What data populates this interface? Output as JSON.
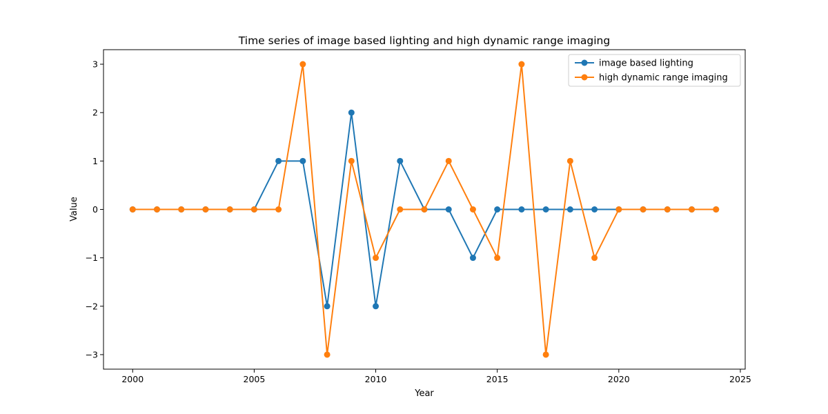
{
  "chart_data": {
    "type": "line",
    "title": "Time series of image based lighting and high dynamic range imaging",
    "xlabel": "Year",
    "ylabel": "Value",
    "x": [
      2000,
      2001,
      2002,
      2003,
      2004,
      2005,
      2006,
      2007,
      2008,
      2009,
      2010,
      2011,
      2012,
      2013,
      2014,
      2015,
      2016,
      2017,
      2018,
      2019,
      2020,
      2021,
      2022,
      2023,
      2024
    ],
    "xlim": [
      1998.8,
      2025.2
    ],
    "ylim": [
      -3.3,
      3.3
    ],
    "xticks": [
      2000,
      2005,
      2010,
      2015,
      2020,
      2025
    ],
    "yticks": [
      -3,
      -2,
      -1,
      0,
      1,
      2,
      3
    ],
    "xtick_labels": [
      "2000",
      "2005",
      "2010",
      "2015",
      "2020",
      "2025"
    ],
    "ytick_labels": [
      "−3",
      "−2",
      "−1",
      "0",
      "1",
      "2",
      "3"
    ],
    "grid": false,
    "legend_position": "top-right",
    "series": [
      {
        "name": "image based lighting",
        "color": "#1f77b4",
        "marker": "circle",
        "values": [
          0,
          0,
          0,
          0,
          0,
          0,
          1,
          1,
          -2,
          2,
          -2,
          1,
          0,
          0,
          -1,
          0,
          0,
          0,
          0,
          0,
          0,
          0,
          0,
          0,
          0
        ]
      },
      {
        "name": "high dynamic range imaging",
        "color": "#ff7f0e",
        "marker": "circle",
        "values": [
          0,
          0,
          0,
          0,
          0,
          0,
          0,
          3,
          -3,
          1,
          -1,
          0,
          0,
          1,
          0,
          -1,
          3,
          -3,
          1,
          -1,
          0,
          0,
          0,
          0,
          0
        ]
      }
    ]
  }
}
